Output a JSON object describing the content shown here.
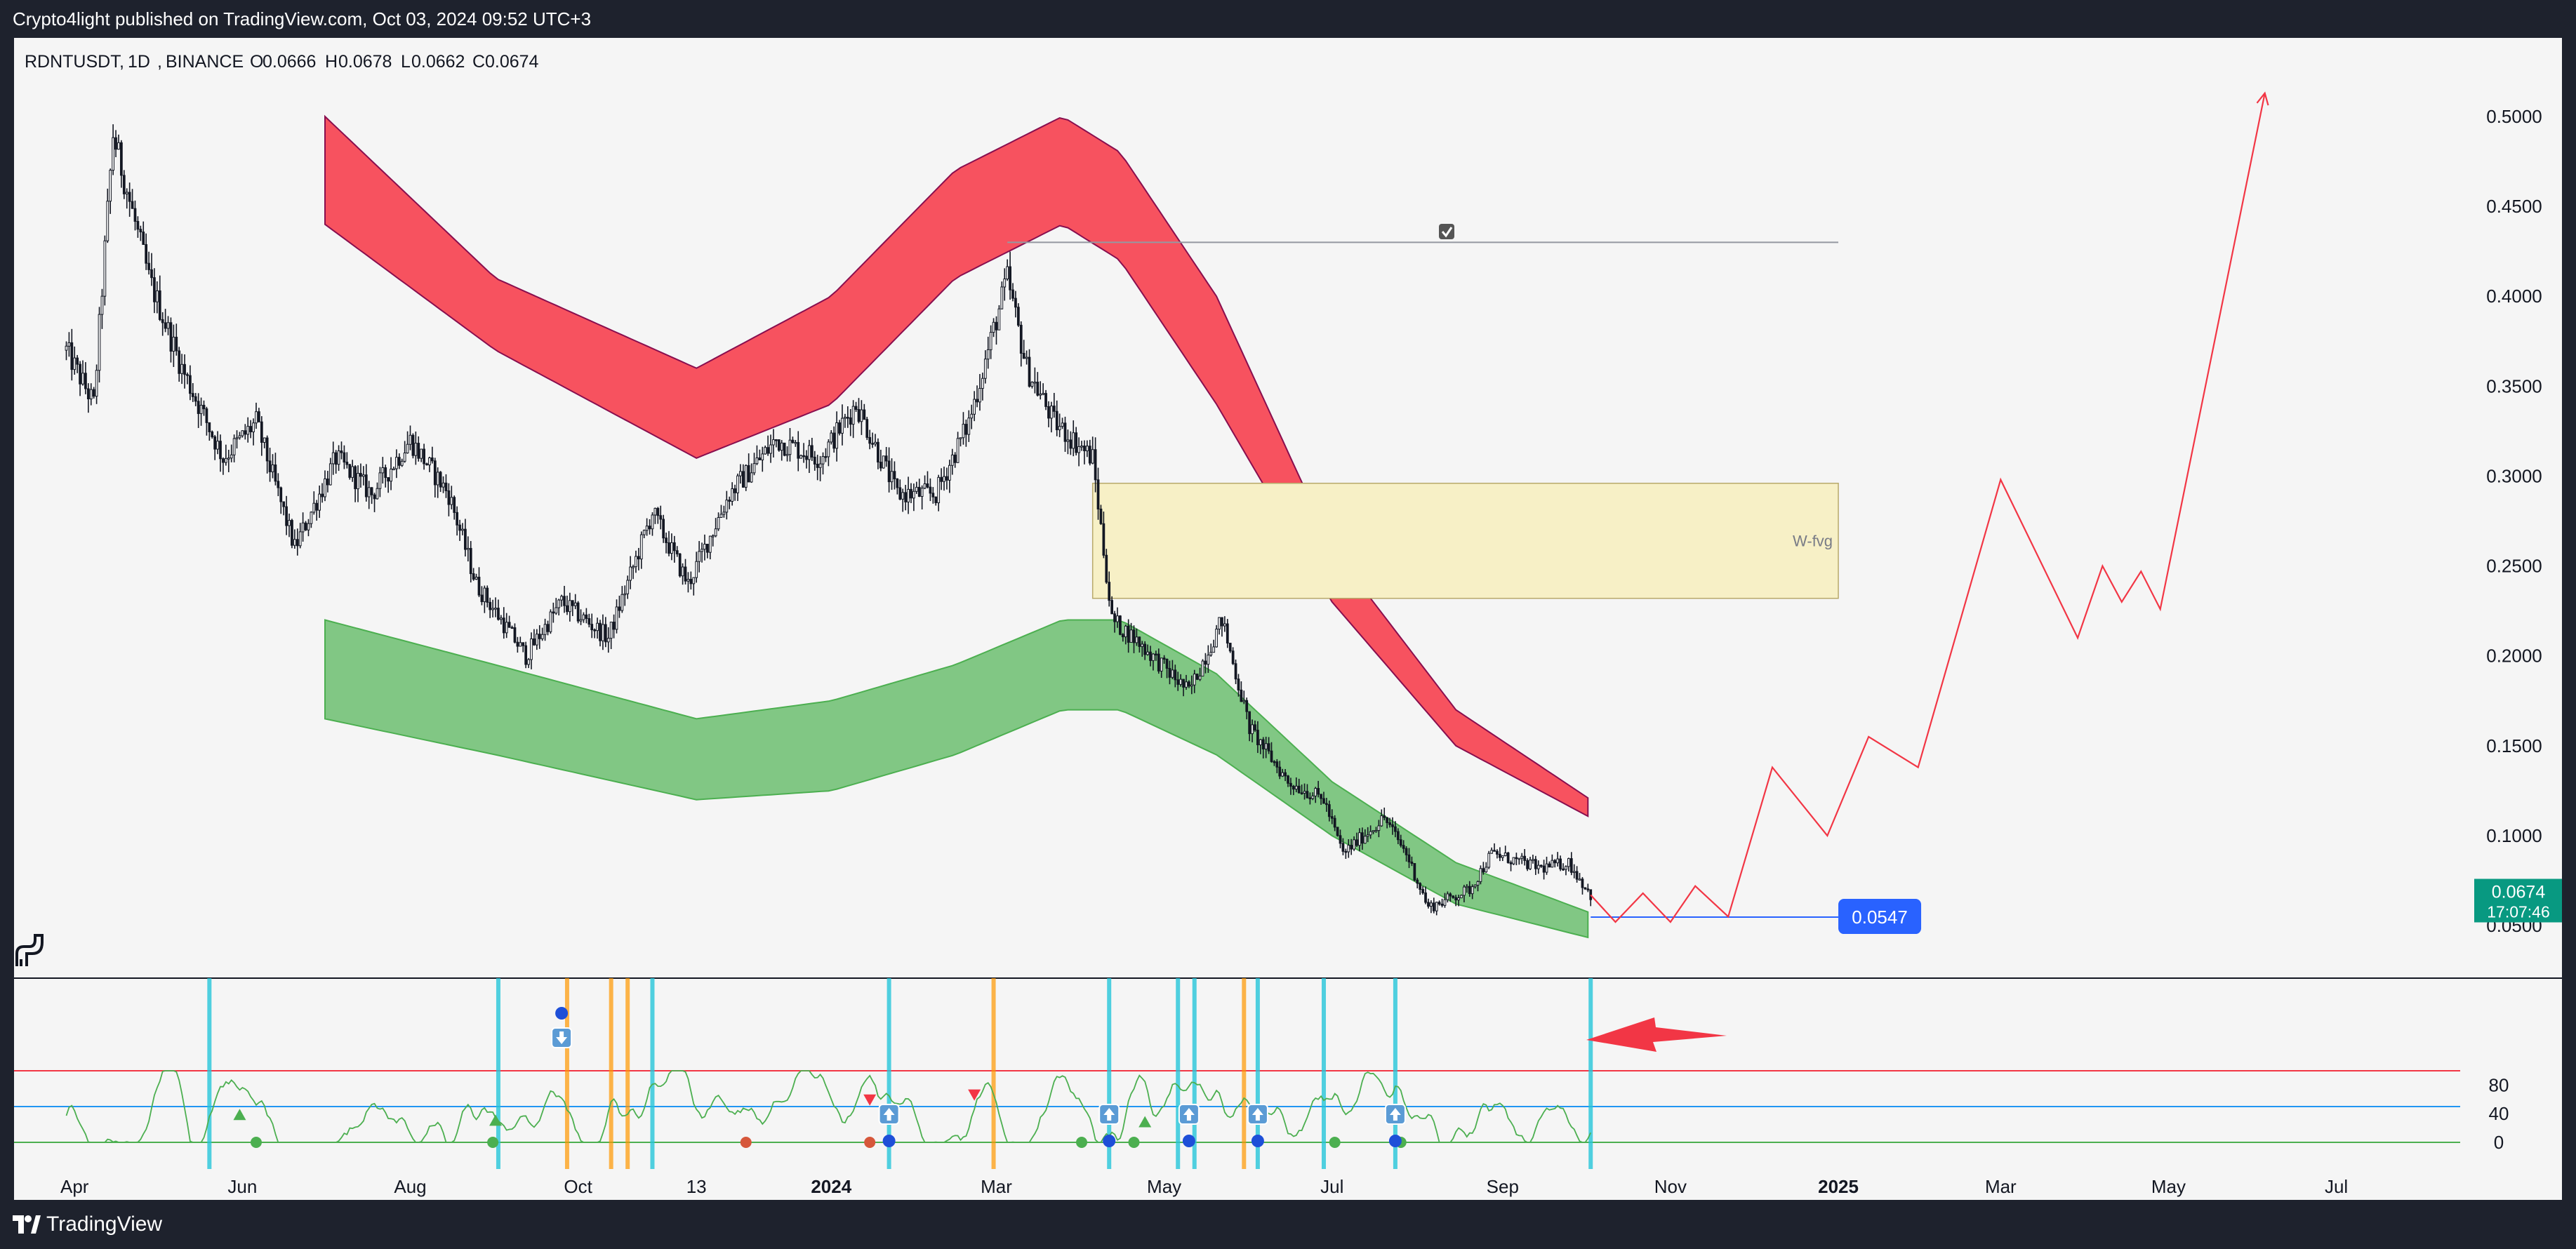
{
  "published": "Crypto4light published on TradingView.com, Oct 03, 2024 09:52 UTC+3",
  "brand": "TradingView",
  "colors": {
    "candle": "#131722",
    "red_band": "#f7525f",
    "red_band_edge": "#880e4f",
    "green_band": "#81c784",
    "green_band_edge": "#4caf50",
    "fvg_fill": "#f7f0c6",
    "projection": "#f23645",
    "price_blue": "#2962ff",
    "last_price": "#089981",
    "osc_line": "#4caf50",
    "osc_upper": "#f23645",
    "osc_mid": "#2196f3",
    "vline_cyan": "#26c6da",
    "vline_orange": "#ff9800"
  },
  "chart_data": {
    "type": "candlestick",
    "title": "",
    "xlabel": "",
    "ylabel": "",
    "symbol": "RDNTUSDT",
    "interval": "1D",
    "exchange": "BINANCE",
    "ohlc": {
      "O": "0.0666",
      "H": "0.0678",
      "L": "0.0662",
      "C": "0.0674"
    },
    "ohlc_labels": {
      "O": "O",
      "H": "H",
      "L": "L",
      "C": "C"
    },
    "x_axis_labels": [
      "Apr",
      "Jun",
      "Aug",
      "Oct",
      "13",
      "2024",
      "Mar",
      "May",
      "Jul",
      "Sep",
      "Nov",
      "2025",
      "Mar",
      "May",
      "Jul"
    ],
    "x_axis_dates": [
      "2023-04-01",
      "2023-06-01",
      "2023-08-01",
      "2023-10-01",
      "2023-11-13",
      "2024-01-01",
      "2024-03-01",
      "2024-05-01",
      "2024-07-01",
      "2024-09-01",
      "2024-11-01",
      "2025-01-01",
      "2025-03-01",
      "2025-05-01",
      "2025-07-01"
    ],
    "x_range": [
      "2023-03-10",
      "2025-08-15"
    ],
    "y_axis_ticks": [
      "0.5000",
      "0.4500",
      "0.4000",
      "0.3500",
      "0.3000",
      "0.2500",
      "0.2000",
      "0.1500",
      "0.1000",
      "0.0500"
    ],
    "y_range": [
      0.03,
      0.535
    ],
    "price_anchors": [
      [
        "2023-03-29",
        0.37
      ],
      [
        "2023-04-08",
        0.34
      ],
      [
        "2023-04-15",
        0.49
      ],
      [
        "2023-04-28",
        0.41
      ],
      [
        "2023-05-10",
        0.36
      ],
      [
        "2023-05-25",
        0.31
      ],
      [
        "2023-06-06",
        0.33
      ],
      [
        "2023-06-20",
        0.26
      ],
      [
        "2023-07-05",
        0.31
      ],
      [
        "2023-07-18",
        0.29
      ],
      [
        "2023-08-01",
        0.32
      ],
      [
        "2023-08-15",
        0.29
      ],
      [
        "2023-08-25",
        0.24
      ],
      [
        "2023-09-12",
        0.2
      ],
      [
        "2023-09-25",
        0.23
      ],
      [
        "2023-10-12",
        0.21
      ],
      [
        "2023-10-28",
        0.28
      ],
      [
        "2023-11-10",
        0.24
      ],
      [
        "2023-11-25",
        0.29
      ],
      [
        "2023-12-12",
        0.32
      ],
      [
        "2023-12-28",
        0.31
      ],
      [
        "2024-01-10",
        0.34
      ],
      [
        "2024-01-25",
        0.29
      ],
      [
        "2024-02-08",
        0.29
      ],
      [
        "2024-02-20",
        0.33
      ],
      [
        "2024-03-05",
        0.41
      ],
      [
        "2024-03-12",
        0.36
      ],
      [
        "2024-03-22",
        0.33
      ],
      [
        "2024-04-05",
        0.31
      ],
      [
        "2024-04-12",
        0.22
      ],
      [
        "2024-04-20",
        0.21
      ],
      [
        "2024-05-10",
        0.18
      ],
      [
        "2024-05-22",
        0.22
      ],
      [
        "2024-06-01",
        0.16
      ],
      [
        "2024-06-15",
        0.13
      ],
      [
        "2024-06-28",
        0.12
      ],
      [
        "2024-07-05",
        0.09
      ],
      [
        "2024-07-20",
        0.11
      ],
      [
        "2024-07-28",
        0.09
      ],
      [
        "2024-08-05",
        0.06
      ],
      [
        "2024-08-20",
        0.07
      ],
      [
        "2024-08-28",
        0.09
      ],
      [
        "2024-09-15",
        0.082
      ],
      [
        "2024-09-25",
        0.085
      ],
      [
        "2024-10-03",
        0.067
      ]
    ],
    "price_noise": 0.012,
    "red_band": {
      "start": "2023-07-01",
      "end": "2024-10-03",
      "upper": [
        [
          "2023-07-01",
          0.5
        ],
        [
          "2023-09-01",
          0.41
        ],
        [
          "2023-11-13",
          0.36
        ],
        [
          "2024-01-01",
          0.4
        ],
        [
          "2024-02-15",
          0.47
        ],
        [
          "2024-03-25",
          0.5
        ],
        [
          "2024-04-15",
          0.48
        ],
        [
          "2024-05-20",
          0.4
        ],
        [
          "2024-07-01",
          0.26
        ],
        [
          "2024-08-15",
          0.17
        ],
        [
          "2024-10-03",
          0.12
        ]
      ],
      "lower": [
        [
          "2023-07-01",
          0.44
        ],
        [
          "2023-09-01",
          0.37
        ],
        [
          "2023-11-13",
          0.31
        ],
        [
          "2024-01-01",
          0.34
        ],
        [
          "2024-02-15",
          0.41
        ],
        [
          "2024-03-25",
          0.44
        ],
        [
          "2024-04-15",
          0.42
        ],
        [
          "2024-05-20",
          0.34
        ],
        [
          "2024-07-01",
          0.23
        ],
        [
          "2024-08-15",
          0.15
        ],
        [
          "2024-10-03",
          0.11
        ]
      ]
    },
    "green_band": {
      "start": "2023-07-01",
      "end": "2024-10-03",
      "upper": [
        [
          "2023-07-01",
          0.22
        ],
        [
          "2023-09-01",
          0.195
        ],
        [
          "2023-11-13",
          0.165
        ],
        [
          "2024-01-01",
          0.175
        ],
        [
          "2024-02-15",
          0.195
        ],
        [
          "2024-03-25",
          0.22
        ],
        [
          "2024-04-15",
          0.22
        ],
        [
          "2024-05-20",
          0.19
        ],
        [
          "2024-07-01",
          0.13
        ],
        [
          "2024-08-15",
          0.085
        ],
        [
          "2024-10-03",
          0.057
        ]
      ],
      "lower": [
        [
          "2023-07-01",
          0.165
        ],
        [
          "2023-09-01",
          0.145
        ],
        [
          "2023-11-13",
          0.12
        ],
        [
          "2024-01-01",
          0.125
        ],
        [
          "2024-02-15",
          0.145
        ],
        [
          "2024-03-25",
          0.17
        ],
        [
          "2024-04-15",
          0.17
        ],
        [
          "2024-05-20",
          0.145
        ],
        [
          "2024-07-01",
          0.1
        ],
        [
          "2024-08-15",
          0.062
        ],
        [
          "2024-10-03",
          0.043
        ]
      ]
    },
    "fvg_zone": {
      "label": "W-fvg",
      "x0": "2024-04-05",
      "x1": "2025-01-01",
      "y0": 0.232,
      "y1": 0.296
    },
    "resistance_line": {
      "x0": "2024-03-05",
      "x1": "2025-01-01",
      "y": 0.43
    },
    "support_line": {
      "x0": "2024-10-03",
      "x1": "2025-01-01",
      "y": 0.0547,
      "label": "0.0547"
    },
    "projection": [
      [
        "2024-10-03",
        0.067
      ],
      [
        "2024-10-12",
        0.052
      ],
      [
        "2024-10-22",
        0.068
      ],
      [
        "2024-11-01",
        0.052
      ],
      [
        "2024-11-10",
        0.072
      ],
      [
        "2024-11-22",
        0.055
      ],
      [
        "2024-12-08",
        0.138
      ],
      [
        "2024-12-28",
        0.1
      ],
      [
        "2025-01-12",
        0.155
      ],
      [
        "2025-01-30",
        0.138
      ],
      [
        "2025-03-01",
        0.298
      ],
      [
        "2025-03-29",
        0.21
      ],
      [
        "2025-04-07",
        0.25
      ],
      [
        "2025-04-14",
        0.23
      ],
      [
        "2025-04-21",
        0.247
      ],
      [
        "2025-04-28",
        0.226
      ],
      [
        "2025-06-05",
        0.513
      ]
    ],
    "last_price": {
      "value": "0.0674",
      "countdown": "17:07:46"
    },
    "oscillator": {
      "y_ticks": [
        "80",
        "40",
        "0"
      ],
      "levels": {
        "upper": 100,
        "mid": 50,
        "zero": 0
      },
      "ylim": [
        -5,
        115
      ],
      "seed": 7,
      "cyan_lines": [
        "2023-05-20",
        "2023-09-02",
        "2023-10-28",
        "2024-01-22",
        "2024-04-11",
        "2024-05-06",
        "2024-05-12",
        "2024-06-04",
        "2024-06-28",
        "2024-07-24",
        "2024-10-03"
      ],
      "orange_lines": [
        "2023-09-27",
        "2023-10-13",
        "2023-10-19",
        "2024-02-29",
        "2024-05-30"
      ],
      "green_dots": [
        "2023-06-06",
        "2023-08-31",
        "2024-04-01",
        "2024-04-20",
        "2024-07-02",
        "2024-07-26"
      ],
      "orange_dots": [
        "2023-12-01",
        "2024-01-15"
      ],
      "blue_dots": [
        "2024-01-22",
        "2024-04-11",
        "2024-05-10",
        "2024-06-04",
        "2024-07-24"
      ],
      "up_badges": [
        "2024-01-22",
        "2024-04-11",
        "2024-05-10",
        "2024-06-04",
        "2024-07-24"
      ],
      "down_badges": [
        "2023-09-25"
      ],
      "top_blue_dot": "2023-09-25",
      "up_triangles": [
        [
          "2023-05-31",
          38
        ],
        [
          "2023-09-01",
          30
        ],
        [
          "2024-04-24",
          28
        ]
      ],
      "down_triangles": [
        [
          "2024-01-15",
          60
        ],
        [
          "2024-02-22",
          67
        ]
      ]
    }
  }
}
